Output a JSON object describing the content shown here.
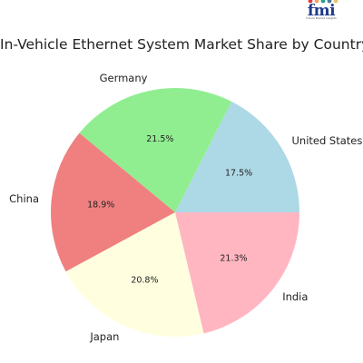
{
  "brand": {
    "logo_text": "fmi",
    "tagline": "Future Market Insights",
    "dot_colors": [
      "#e63946",
      "#f4a261",
      "#2a9d8f",
      "#457b9d",
      "#e9c46a"
    ]
  },
  "chart_data": {
    "type": "pie",
    "title": "In-Vehicle Ethernet System Market Share by Country",
    "categories": [
      "United States",
      "Germany",
      "China",
      "Japan",
      "India"
    ],
    "values": [
      17.5,
      21.5,
      18.9,
      20.8,
      21.3
    ],
    "value_labels": [
      "17.5%",
      "21.5%",
      "18.9%",
      "20.8%",
      "21.3%"
    ],
    "colors": [
      "#add8e6",
      "#90ee90",
      "#f08080",
      "#ffffe0",
      "#ffb6c1"
    ],
    "start_angle_deg": 0,
    "direction": "counterclockwise",
    "legend": "none"
  }
}
